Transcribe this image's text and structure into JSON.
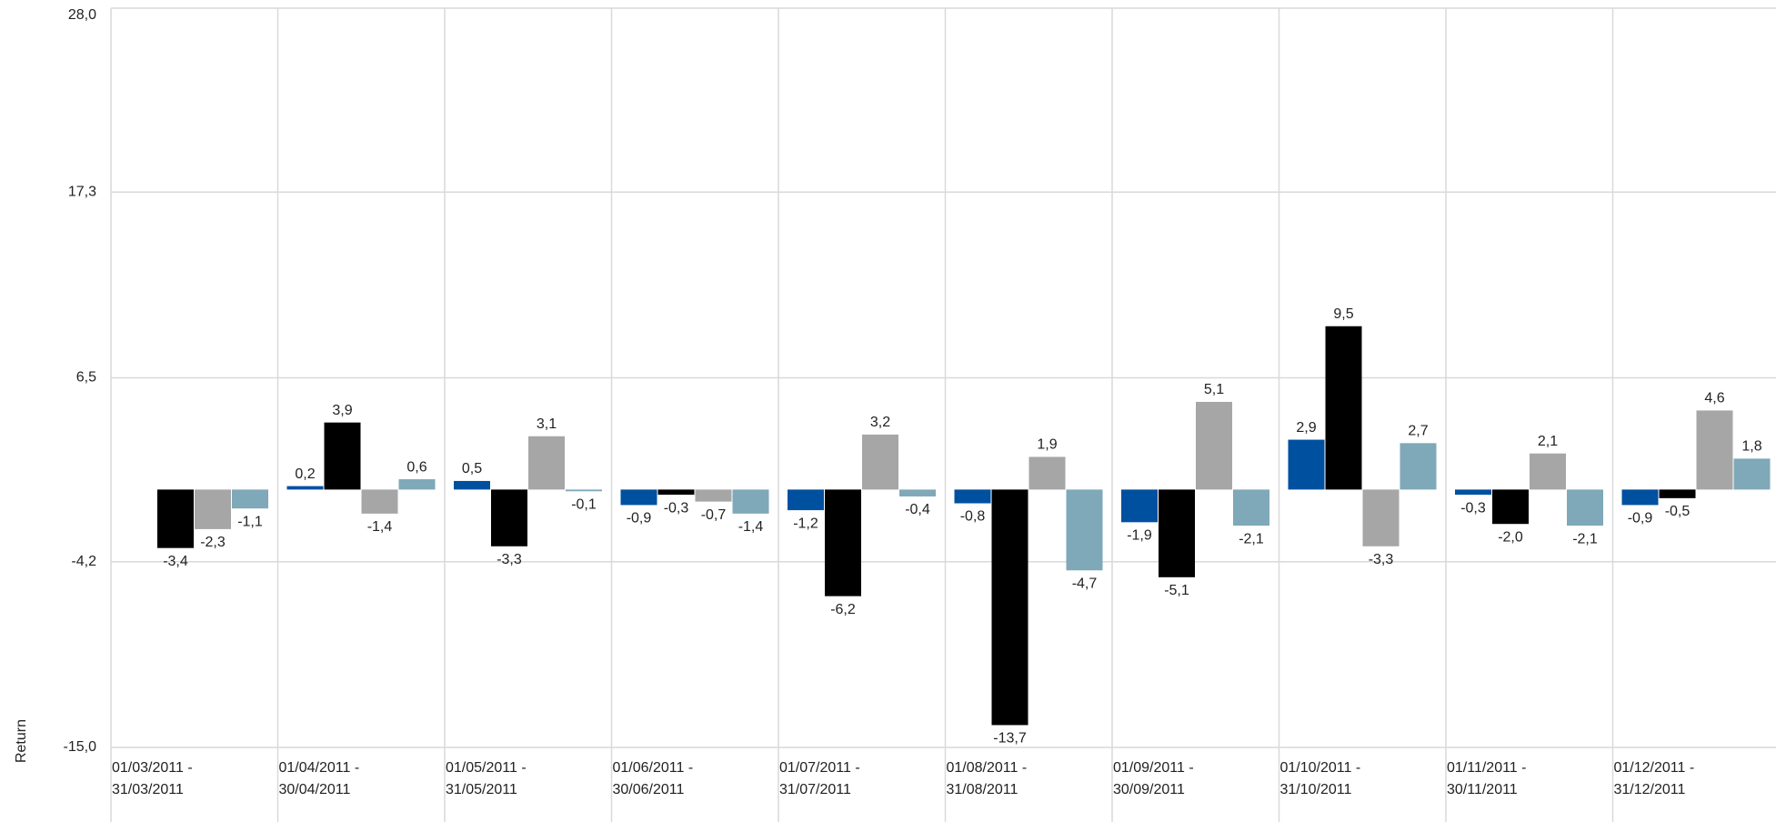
{
  "chart_data": {
    "type": "bar",
    "y_label": "Return",
    "categories": [
      [
        "01/03/2011 -",
        "31/03/2011"
      ],
      [
        "01/04/2011 -",
        "30/04/2011"
      ],
      [
        "01/05/2011 -",
        "31/05/2011"
      ],
      [
        "01/06/2011 -",
        "30/06/2011"
      ],
      [
        "01/07/2011 -",
        "31/07/2011"
      ],
      [
        "01/08/2011 -",
        "31/08/2011"
      ],
      [
        "01/09/2011 -",
        "30/09/2011"
      ],
      [
        "01/10/2011 -",
        "31/10/2011"
      ],
      [
        "01/11/2011 -",
        "30/11/2011"
      ],
      [
        "01/12/2011 -",
        "31/12/2011"
      ]
    ],
    "series": [
      {
        "color": "#0050a0",
        "values": [
          null,
          0.2,
          0.5,
          -0.9,
          -1.2,
          -0.8,
          -1.9,
          2.9,
          -0.3,
          -0.9
        ],
        "value_labels": [
          null,
          "0,2",
          "0,5",
          "-0,9",
          "-1,2",
          "-0,8",
          "-1,9",
          "2,9",
          "-0,3",
          "-0,9"
        ]
      },
      {
        "color": "#000000",
        "values": [
          -3.4,
          3.9,
          -3.3,
          -0.3,
          -6.2,
          -13.7,
          -5.1,
          9.5,
          -2.0,
          -0.5
        ],
        "value_labels": [
          "-3,4",
          "3,9",
          "-3,3",
          "-0,3",
          "-6,2",
          "-13,7",
          "-5,1",
          "9,5",
          "-2,0",
          "-0,5"
        ]
      },
      {
        "color": "#a6a6a6",
        "values": [
          -2.3,
          -1.4,
          3.1,
          -0.7,
          3.2,
          1.9,
          5.1,
          -3.3,
          2.1,
          4.6
        ],
        "value_labels": [
          "-2,3",
          "-1,4",
          "3,1",
          "-0,7",
          "3,2",
          "1,9",
          "5,1",
          "-3,3",
          "2,1",
          "4,6"
        ]
      },
      {
        "color": "#7fa8b8",
        "values": [
          -1.1,
          0.6,
          -0.1,
          -1.4,
          -0.4,
          -4.7,
          -2.1,
          2.7,
          -2.1,
          1.8
        ],
        "value_labels": [
          "-1,1",
          "0,6",
          "-0,1",
          "-1,4",
          "-0,4",
          "-4,7",
          "-2,1",
          "2,7",
          "-2,1",
          "1,8"
        ]
      }
    ],
    "ylim": [
      -15,
      28
    ],
    "yticks": [
      {
        "value": 28,
        "label": "28,0"
      },
      {
        "value": 17.3,
        "label": "17,3"
      },
      {
        "value": 6.5,
        "label": "6,5"
      },
      {
        "value": -4.2,
        "label": "-4,2"
      },
      {
        "value": -15,
        "label": "-15,0"
      }
    ],
    "grid": true
  }
}
